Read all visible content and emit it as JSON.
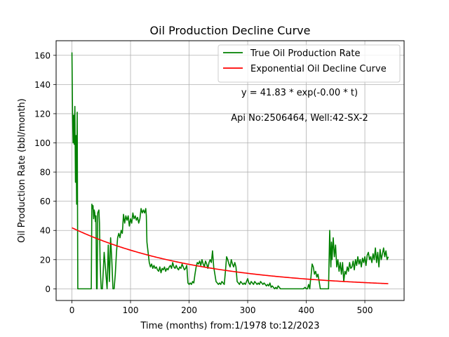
{
  "chart_data": {
    "type": "line",
    "title": "Oil Production Decline Curve",
    "xlabel": "Time (months) from:1/1978 to:12/2023",
    "ylabel": "Oil Production Rate (bbl/month)",
    "xlim": [
      -27,
      567
    ],
    "ylim": [
      -8,
      170
    ],
    "xticks": [
      0,
      100,
      200,
      300,
      400,
      500
    ],
    "yticks": [
      0,
      20,
      40,
      60,
      80,
      100,
      120,
      140,
      160
    ],
    "grid": true,
    "legend_position": "top-right",
    "annotations": [
      "y = 41.83 * exp(-0.00 * t)",
      "Api No:2506464, Well:42-SX-2"
    ],
    "series": [
      {
        "name": "True Oil Production Rate",
        "color": "#008000",
        "style": "line",
        "points": [
          [
            0,
            162
          ],
          [
            1,
            120
          ],
          [
            2,
            100
          ],
          [
            3,
            119
          ],
          [
            4,
            99
          ],
          [
            5,
            125
          ],
          [
            6,
            73
          ],
          [
            7,
            105
          ],
          [
            8,
            58
          ],
          [
            9,
            121
          ],
          [
            10,
            0
          ],
          [
            15,
            0
          ],
          [
            20,
            0
          ],
          [
            25,
            0
          ],
          [
            30,
            0
          ],
          [
            33,
            0
          ],
          [
            34,
            58
          ],
          [
            35,
            55
          ],
          [
            36,
            57
          ],
          [
            37,
            48
          ],
          [
            38,
            54
          ],
          [
            39,
            52
          ],
          [
            40,
            46
          ],
          [
            41,
            50
          ],
          [
            42,
            0
          ],
          [
            43,
            0
          ],
          [
            44,
            52
          ],
          [
            45,
            53
          ],
          [
            46,
            54
          ],
          [
            47,
            45
          ],
          [
            48,
            20
          ],
          [
            49,
            8
          ],
          [
            50,
            0
          ],
          [
            52,
            0
          ],
          [
            55,
            25
          ],
          [
            58,
            10
          ],
          [
            60,
            0
          ],
          [
            62,
            30
          ],
          [
            64,
            5
          ],
          [
            66,
            35
          ],
          [
            68,
            20
          ],
          [
            70,
            0
          ],
          [
            72,
            0
          ],
          [
            74,
            10
          ],
          [
            76,
            25
          ],
          [
            78,
            35
          ],
          [
            80,
            38
          ],
          [
            82,
            35
          ],
          [
            84,
            40
          ],
          [
            86,
            38
          ],
          [
            88,
            51
          ],
          [
            90,
            45
          ],
          [
            92,
            50
          ],
          [
            94,
            47
          ],
          [
            96,
            50
          ],
          [
            98,
            43
          ],
          [
            100,
            48
          ],
          [
            102,
            45
          ],
          [
            104,
            52
          ],
          [
            106,
            48
          ],
          [
            108,
            50
          ],
          [
            110,
            47
          ],
          [
            112,
            49
          ],
          [
            114,
            45
          ],
          [
            116,
            48
          ],
          [
            118,
            55
          ],
          [
            120,
            52
          ],
          [
            122,
            54
          ],
          [
            124,
            52
          ],
          [
            126,
            55
          ],
          [
            127,
            50
          ],
          [
            128,
            32
          ],
          [
            130,
            25
          ],
          [
            132,
            18
          ],
          [
            134,
            15
          ],
          [
            136,
            17
          ],
          [
            138,
            14
          ],
          [
            140,
            16
          ],
          [
            142,
            14
          ],
          [
            144,
            15
          ],
          [
            146,
            13
          ],
          [
            148,
            12
          ],
          [
            150,
            15
          ],
          [
            152,
            11
          ],
          [
            154,
            14
          ],
          [
            156,
            13
          ],
          [
            158,
            15
          ],
          [
            160,
            12
          ],
          [
            162,
            14
          ],
          [
            164,
            13
          ],
          [
            166,
            15
          ],
          [
            168,
            16
          ],
          [
            170,
            14
          ],
          [
            172,
            18
          ],
          [
            174,
            15
          ],
          [
            176,
            14
          ],
          [
            178,
            16
          ],
          [
            180,
            14
          ],
          [
            182,
            13
          ],
          [
            184,
            15
          ],
          [
            186,
            14
          ],
          [
            188,
            17
          ],
          [
            190,
            15
          ],
          [
            192,
            13
          ],
          [
            194,
            14
          ],
          [
            196,
            16
          ],
          [
            198,
            4
          ],
          [
            200,
            3
          ],
          [
            202,
            4
          ],
          [
            204,
            3
          ],
          [
            206,
            5
          ],
          [
            208,
            4
          ],
          [
            210,
            10
          ],
          [
            212,
            15
          ],
          [
            214,
            18
          ],
          [
            216,
            17
          ],
          [
            218,
            19
          ],
          [
            220,
            16
          ],
          [
            222,
            20
          ],
          [
            224,
            17
          ],
          [
            226,
            15
          ],
          [
            228,
            19
          ],
          [
            230,
            17
          ],
          [
            232,
            14
          ],
          [
            234,
            18
          ],
          [
            236,
            20
          ],
          [
            238,
            18
          ],
          [
            240,
            26
          ],
          [
            242,
            15
          ],
          [
            244,
            10
          ],
          [
            246,
            5
          ],
          [
            248,
            4
          ],
          [
            250,
            3
          ],
          [
            252,
            4
          ],
          [
            254,
            3
          ],
          [
            256,
            5
          ],
          [
            258,
            4
          ],
          [
            260,
            3
          ],
          [
            262,
            12
          ],
          [
            264,
            22
          ],
          [
            266,
            20
          ],
          [
            268,
            17
          ],
          [
            270,
            15
          ],
          [
            272,
            20
          ],
          [
            274,
            17
          ],
          [
            276,
            15
          ],
          [
            278,
            18
          ],
          [
            280,
            15
          ],
          [
            282,
            5
          ],
          [
            284,
            4
          ],
          [
            286,
            3
          ],
          [
            288,
            5
          ],
          [
            290,
            4
          ],
          [
            292,
            3
          ],
          [
            294,
            4
          ],
          [
            296,
            3
          ],
          [
            298,
            5
          ],
          [
            300,
            7
          ],
          [
            302,
            4
          ],
          [
            304,
            3
          ],
          [
            306,
            5
          ],
          [
            308,
            4
          ],
          [
            310,
            3
          ],
          [
            312,
            5
          ],
          [
            314,
            4
          ],
          [
            316,
            3
          ],
          [
            318,
            4
          ],
          [
            320,
            3
          ],
          [
            322,
            5
          ],
          [
            324,
            4
          ],
          [
            326,
            3
          ],
          [
            328,
            4
          ],
          [
            330,
            3
          ],
          [
            332,
            2
          ],
          [
            334,
            3
          ],
          [
            336,
            2
          ],
          [
            338,
            4
          ],
          [
            340,
            1
          ],
          [
            342,
            2
          ],
          [
            344,
            1
          ],
          [
            346,
            0
          ],
          [
            348,
            1
          ],
          [
            350,
            0
          ],
          [
            352,
            2
          ],
          [
            354,
            1
          ],
          [
            356,
            0
          ],
          [
            360,
            0
          ],
          [
            370,
            0
          ],
          [
            380,
            0
          ],
          [
            390,
            0
          ],
          [
            395,
            0
          ],
          [
            398,
            1
          ],
          [
            400,
            0
          ],
          [
            402,
            0
          ],
          [
            404,
            3
          ],
          [
            406,
            0
          ],
          [
            407,
            5
          ],
          [
            408,
            8
          ],
          [
            410,
            17
          ],
          [
            412,
            15
          ],
          [
            414,
            10
          ],
          [
            416,
            12
          ],
          [
            418,
            8
          ],
          [
            420,
            10
          ],
          [
            422,
            5
          ],
          [
            424,
            0
          ],
          [
            426,
            0
          ],
          [
            430,
            0
          ],
          [
            435,
            0
          ],
          [
            438,
            0
          ],
          [
            440,
            40
          ],
          [
            441,
            25
          ],
          [
            442,
            15
          ],
          [
            443,
            32
          ],
          [
            444,
            20
          ],
          [
            446,
            35
          ],
          [
            448,
            22
          ],
          [
            450,
            30
          ],
          [
            452,
            15
          ],
          [
            454,
            20
          ],
          [
            456,
            12
          ],
          [
            458,
            18
          ],
          [
            460,
            10
          ],
          [
            462,
            18
          ],
          [
            464,
            5
          ],
          [
            466,
            12
          ],
          [
            468,
            10
          ],
          [
            470,
            15
          ],
          [
            472,
            12
          ],
          [
            474,
            18
          ],
          [
            476,
            14
          ],
          [
            478,
            15
          ],
          [
            480,
            19
          ],
          [
            482,
            13
          ],
          [
            484,
            20
          ],
          [
            486,
            16
          ],
          [
            488,
            22
          ],
          [
            490,
            17
          ],
          [
            492,
            20
          ],
          [
            494,
            15
          ],
          [
            496,
            21
          ],
          [
            498,
            18
          ],
          [
            500,
            22
          ],
          [
            502,
            16
          ],
          [
            504,
            23
          ],
          [
            506,
            25
          ],
          [
            508,
            20
          ],
          [
            510,
            22
          ],
          [
            512,
            18
          ],
          [
            514,
            24
          ],
          [
            516,
            20
          ],
          [
            518,
            28
          ],
          [
            520,
            18
          ],
          [
            522,
            25
          ],
          [
            524,
            15
          ],
          [
            526,
            27
          ],
          [
            528,
            20
          ],
          [
            530,
            24
          ],
          [
            532,
            28
          ],
          [
            534,
            22
          ],
          [
            536,
            26
          ],
          [
            538,
            20
          ],
          [
            540,
            22
          ]
        ]
      },
      {
        "name": "Exponential Oil Decline Curve",
        "color": "#ff0000",
        "style": "curve",
        "y0": 41.83,
        "decay_per_month": 0.00457,
        "x_range": [
          0,
          540
        ]
      }
    ]
  }
}
